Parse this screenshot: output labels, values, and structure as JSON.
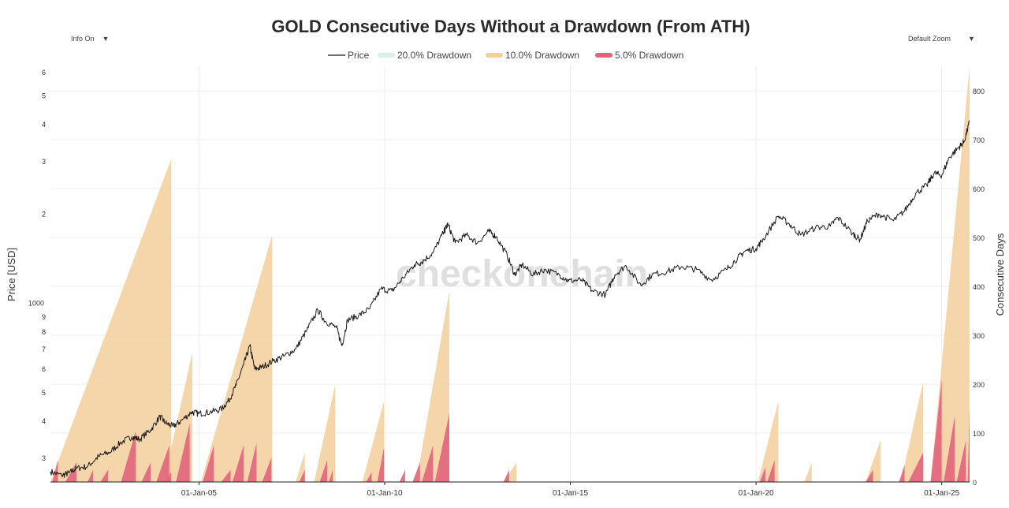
{
  "controls": {
    "info_label": "Info On",
    "zoom_label": "Default Zoom",
    "arrow": "▼"
  },
  "watermark": "checkonchain",
  "colors": {
    "price": "#1a1a1a",
    "dd20": "#bfe6dc",
    "dd10": "#f3cf9c",
    "dd5": "#e2647b",
    "axis": "#222222",
    "grid": "#eeeeee"
  },
  "chart_data": {
    "type": "line",
    "title": "GOLD Consecutive Days Without a Drawdown (From ATH)",
    "legend": [
      "Price",
      "20.0% Drawdown",
      "10.0% Drawdown",
      "5.0% Drawdown"
    ],
    "y_left": {
      "label": "Price [USD]",
      "scale": "log",
      "range": [
        250,
        6300
      ],
      "ticks": [
        "3",
        "4",
        "5",
        "6",
        "7",
        "8",
        "9",
        "1000",
        "2",
        "3",
        "4",
        "5",
        "6"
      ],
      "tick_values": [
        300,
        400,
        500,
        600,
        700,
        800,
        900,
        1000,
        2000,
        3000,
        4000,
        5000,
        6000
      ]
    },
    "y_right": {
      "label": "Consecutive Days",
      "range": [
        0,
        850
      ],
      "ticks": [
        "0",
        "100",
        "200",
        "300",
        "400",
        "500",
        "600",
        "700",
        "800"
      ],
      "tick_values": [
        0,
        100,
        200,
        300,
        400,
        500,
        600,
        700,
        800
      ]
    },
    "x": {
      "range": [
        2001.0,
        2025.75
      ],
      "ticks": [
        "01-Jan-05",
        "01-Jan-10",
        "01-Jan-15",
        "01-Jan-20",
        "01-Jan-25"
      ],
      "tick_values": [
        2005,
        2010,
        2015,
        2020,
        2025
      ]
    },
    "price_series": {
      "name": "Price",
      "points": [
        [
          2001.0,
          271
        ],
        [
          2001.3,
          263
        ],
        [
          2001.5,
          268
        ],
        [
          2001.7,
          278
        ],
        [
          2002.0,
          282
        ],
        [
          2002.3,
          305
        ],
        [
          2002.6,
          315
        ],
        [
          2002.9,
          340
        ],
        [
          2003.2,
          355
        ],
        [
          2003.4,
          348
        ],
        [
          2003.7,
          375
        ],
        [
          2003.95,
          415
        ],
        [
          2004.1,
          395
        ],
        [
          2004.3,
          385
        ],
        [
          2004.5,
          400
        ],
        [
          2004.8,
          430
        ],
        [
          2005.0,
          425
        ],
        [
          2005.3,
          430
        ],
        [
          2005.6,
          440
        ],
        [
          2005.8,
          470
        ],
        [
          2006.0,
          530
        ],
        [
          2006.2,
          620
        ],
        [
          2006.37,
          720
        ],
        [
          2006.5,
          600
        ],
        [
          2006.7,
          610
        ],
        [
          2007.0,
          640
        ],
        [
          2007.3,
          665
        ],
        [
          2007.6,
          700
        ],
        [
          2007.9,
          810
        ],
        [
          2008.2,
          950
        ],
        [
          2008.4,
          870
        ],
        [
          2008.7,
          830
        ],
        [
          2008.85,
          720
        ],
        [
          2009.0,
          880
        ],
        [
          2009.3,
          910
        ],
        [
          2009.6,
          960
        ],
        [
          2009.9,
          1120
        ],
        [
          2010.2,
          1100
        ],
        [
          2010.5,
          1220
        ],
        [
          2010.8,
          1350
        ],
        [
          2011.0,
          1380
        ],
        [
          2011.3,
          1480
        ],
        [
          2011.6,
          1750
        ],
        [
          2011.7,
          1850
        ],
        [
          2011.9,
          1600
        ],
        [
          2012.2,
          1700
        ],
        [
          2012.5,
          1600
        ],
        [
          2012.8,
          1750
        ],
        [
          2013.0,
          1680
        ],
        [
          2013.3,
          1450
        ],
        [
          2013.5,
          1250
        ],
        [
          2013.7,
          1350
        ],
        [
          2014.0,
          1250
        ],
        [
          2014.3,
          1300
        ],
        [
          2014.7,
          1250
        ],
        [
          2014.95,
          1190
        ],
        [
          2015.3,
          1200
        ],
        [
          2015.6,
          1100
        ],
        [
          2015.95,
          1070
        ],
        [
          2016.2,
          1250
        ],
        [
          2016.5,
          1340
        ],
        [
          2016.9,
          1150
        ],
        [
          2017.2,
          1250
        ],
        [
          2017.6,
          1280
        ],
        [
          2018.0,
          1330
        ],
        [
          2018.4,
          1300
        ],
        [
          2018.8,
          1200
        ],
        [
          2019.2,
          1300
        ],
        [
          2019.5,
          1420
        ],
        [
          2019.7,
          1500
        ],
        [
          2020.0,
          1530
        ],
        [
          2020.2,
          1650
        ],
        [
          2020.6,
          1970
        ],
        [
          2020.9,
          1850
        ],
        [
          2021.2,
          1700
        ],
        [
          2021.6,
          1800
        ],
        [
          2022.0,
          1820
        ],
        [
          2022.2,
          1950
        ],
        [
          2022.6,
          1720
        ],
        [
          2022.8,
          1640
        ],
        [
          2023.0,
          1900
        ],
        [
          2023.3,
          2000
        ],
        [
          2023.7,
          1900
        ],
        [
          2024.0,
          2050
        ],
        [
          2024.3,
          2350
        ],
        [
          2024.6,
          2500
        ],
        [
          2024.8,
          2750
        ],
        [
          2025.0,
          2700
        ],
        [
          2025.2,
          3100
        ],
        [
          2025.45,
          3350
        ],
        [
          2025.6,
          3500
        ],
        [
          2025.75,
          4100
        ]
      ]
    },
    "drawdown_10pct": {
      "name": "10.0% Drawdown",
      "segments": [
        [
          2001.0,
          2004.25,
          660
        ],
        [
          2004.05,
          2004.82,
          265
        ],
        [
          2005.05,
          2006.97,
          505
        ],
        [
          2007.6,
          2007.85,
          60
        ],
        [
          2008.1,
          2008.67,
          200
        ],
        [
          2009.4,
          2009.98,
          165
        ],
        [
          2010.85,
          2011.74,
          390
        ],
        [
          2013.2,
          2013.55,
          40
        ],
        [
          2020.05,
          2020.6,
          165
        ],
        [
          2021.3,
          2021.5,
          40
        ],
        [
          2022.95,
          2023.35,
          85
        ],
        [
          2023.9,
          2024.5,
          205
        ],
        [
          2024.7,
          2025.75,
          850
        ]
      ]
    },
    "drawdown_5pct": {
      "name": "5.0% Drawdown",
      "segments": [
        [
          2001.05,
          2001.2,
          45
        ],
        [
          2001.4,
          2001.7,
          40
        ],
        [
          2002.0,
          2002.15,
          25
        ],
        [
          2002.35,
          2002.55,
          25
        ],
        [
          2002.9,
          2003.3,
          105
        ],
        [
          2003.45,
          2003.7,
          40
        ],
        [
          2003.85,
          2004.2,
          75
        ],
        [
          2004.1,
          2004.25,
          20
        ],
        [
          2004.38,
          2004.75,
          120
        ],
        [
          2005.1,
          2005.4,
          75
        ],
        [
          2005.6,
          2005.85,
          25
        ],
        [
          2005.9,
          2006.2,
          75
        ],
        [
          2006.3,
          2006.55,
          80
        ],
        [
          2006.7,
          2006.95,
          50
        ],
        [
          2007.7,
          2007.85,
          25
        ],
        [
          2008.25,
          2008.45,
          45
        ],
        [
          2008.5,
          2008.6,
          25
        ],
        [
          2009.5,
          2009.65,
          20
        ],
        [
          2009.8,
          2009.98,
          70
        ],
        [
          2010.4,
          2010.55,
          25
        ],
        [
          2010.75,
          2010.95,
          40
        ],
        [
          2011.0,
          2011.3,
          75
        ],
        [
          2011.35,
          2011.74,
          140
        ],
        [
          2013.2,
          2013.35,
          25
        ],
        [
          2020.1,
          2020.25,
          30
        ],
        [
          2020.3,
          2020.5,
          45
        ],
        [
          2022.95,
          2023.15,
          25
        ],
        [
          2023.85,
          2024.0,
          35
        ],
        [
          2024.1,
          2024.5,
          60
        ],
        [
          2024.7,
          2025.0,
          210
        ],
        [
          2025.05,
          2025.35,
          135
        ],
        [
          2025.4,
          2025.65,
          85
        ],
        [
          2025.7,
          2025.75,
          150
        ]
      ]
    },
    "drawdown_20pct": {
      "name": "20.0% Drawdown",
      "segments": []
    }
  }
}
